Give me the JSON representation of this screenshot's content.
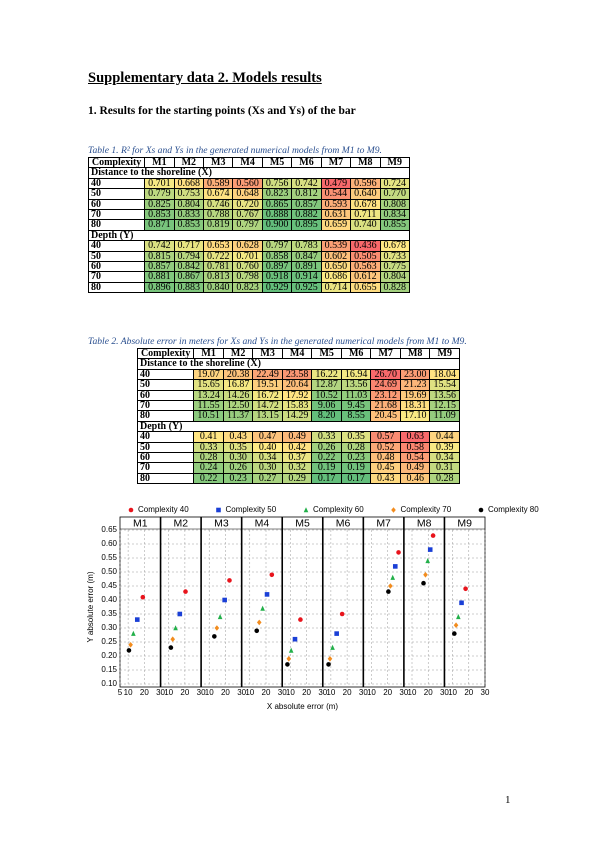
{
  "header": {
    "title": "Supplementary data 2. Models results",
    "section": "1. Results for the starting points (Xs and Ys) of the bar"
  },
  "table1": {
    "caption": "Table 1. R² for Xs and Ys in the generated numerical models from M1 to M9.",
    "header": [
      "Complexity",
      "M1",
      "M2",
      "M3",
      "M4",
      "M5",
      "M6",
      "M7",
      "M8",
      "M9"
    ],
    "sections": [
      {
        "title": "Distance to the shoreline (X)",
        "rows": [
          {
            "label": "40",
            "cells": [
              "0.701",
              "0.668",
              "0.589",
              "0.560",
              "0.756",
              "0.742",
              "0.479",
              "0.596",
              "0.724"
            ]
          },
          {
            "label": "50",
            "cells": [
              "0.779",
              "0.753",
              "0.674",
              "0.648",
              "0.823",
              "0.812",
              "0.544",
              "0.640",
              "0.770"
            ]
          },
          {
            "label": "60",
            "cells": [
              "0.825",
              "0.804",
              "0.746",
              "0.720",
              "0.865",
              "0.857",
              "0.593",
              "0.678",
              "0.808"
            ]
          },
          {
            "label": "70",
            "cells": [
              "0.853",
              "0.833",
              "0.788",
              "0.767",
              "0.888",
              "0.882",
              "0.631",
              "0.711",
              "0.834"
            ]
          },
          {
            "label": "80",
            "cells": [
              "0.871",
              "0.853",
              "0.819",
              "0.797",
              "0.900",
              "0.895",
              "0.659",
              "0.740",
              "0.855"
            ]
          }
        ]
      },
      {
        "title": "Depth (Y)",
        "rows": [
          {
            "label": "40",
            "cells": [
              "0.742",
              "0.717",
              "0.653",
              "0.628",
              "0.797",
              "0.783",
              "0.539",
              "0.436",
              "0.678"
            ]
          },
          {
            "label": "50",
            "cells": [
              "0.815",
              "0.794",
              "0.722",
              "0.701",
              "0.858",
              "0.847",
              "0.602",
              "0.505",
              "0.733"
            ]
          },
          {
            "label": "60",
            "cells": [
              "0.857",
              "0.842",
              "0.781",
              "0.760",
              "0.897",
              "0.891",
              "0.650",
              "0.563",
              "0.775"
            ]
          },
          {
            "label": "70",
            "cells": [
              "0.881",
              "0.867",
              "0.813",
              "0.798",
              "0.918",
              "0.914",
              "0.686",
              "0.612",
              "0.804"
            ]
          },
          {
            "label": "80",
            "cells": [
              "0.896",
              "0.883",
              "0.840",
              "0.823",
              "0.929",
              "0.925",
              "0.714",
              "0.655",
              "0.828"
            ]
          }
        ]
      }
    ]
  },
  "table2": {
    "caption": "Table 2. Absolute error in meters for Xs and Ys in the generated numerical models from M1 to M9.",
    "header": [
      "Complexity",
      "M1",
      "M2",
      "M3",
      "M4",
      "M5",
      "M6",
      "M7",
      "M8",
      "M9"
    ],
    "sections": [
      {
        "title": "Distance to the shoreline (X)",
        "rows": [
          {
            "label": "40",
            "cells": [
              "19.07",
              "20.38",
              "22.49",
              "23.58",
              "16.22",
              "16.94",
              "26.70",
              "23.00",
              "18.04"
            ]
          },
          {
            "label": "50",
            "cells": [
              "15.65",
              "16.87",
              "19.51",
              "20.64",
              "12.87",
              "13.56",
              "24.69",
              "21.23",
              "15.54"
            ]
          },
          {
            "label": "60",
            "cells": [
              "13.24",
              "14.26",
              "16.72",
              "17.92",
              "10.52",
              "11.03",
              "23.12",
              "19.69",
              "13.56"
            ]
          },
          {
            "label": "70",
            "cells": [
              "11.55",
              "12.50",
              "14.72",
              "15.83",
              "9.06",
              "9.45",
              "21.68",
              "18.31",
              "12.15"
            ]
          },
          {
            "label": "80",
            "cells": [
              "10.51",
              "11.37",
              "13.15",
              "14.29",
              "8.20",
              "8.55",
              "20.45",
              "17.10",
              "11.09"
            ]
          }
        ]
      },
      {
        "title": "Depth (Y)",
        "rows": [
          {
            "label": "40",
            "cells": [
              "0.41",
              "0.43",
              "0.47",
              "0.49",
              "0.33",
              "0.35",
              "0.57",
              "0.63",
              "0.44"
            ]
          },
          {
            "label": "50",
            "cells": [
              "0.33",
              "0.35",
              "0.40",
              "0.42",
              "0.26",
              "0.28",
              "0.52",
              "0.58",
              "0.39"
            ]
          },
          {
            "label": "60",
            "cells": [
              "0.28",
              "0.30",
              "0.34",
              "0.37",
              "0.22",
              "0.23",
              "0.48",
              "0.54",
              "0.34"
            ]
          },
          {
            "label": "70",
            "cells": [
              "0.24",
              "0.26",
              "0.30",
              "0.32",
              "0.19",
              "0.19",
              "0.45",
              "0.49",
              "0.31"
            ]
          },
          {
            "label": "80",
            "cells": [
              "0.22",
              "0.23",
              "0.27",
              "0.29",
              "0.17",
              "0.17",
              "0.43",
              "0.46",
              "0.28"
            ]
          }
        ]
      }
    ]
  },
  "chart_data": {
    "type": "scatter",
    "xlabel": "X absolute error (m)",
    "ylabel": "Y absolute error (m)",
    "xlim": [
      5,
      30
    ],
    "ylim": [
      0.1,
      0.65
    ],
    "yticks": [
      {
        "value": 0.1,
        "label": "0.10"
      },
      {
        "value": 0.15,
        "label": "0.15"
      },
      {
        "value": 0.2,
        "label": "0.20"
      },
      {
        "value": 0.25,
        "label": "0.25"
      },
      {
        "value": 0.3,
        "label": "0.30"
      },
      {
        "value": 0.35,
        "label": "0.35"
      },
      {
        "value": 0.4,
        "label": "0.40"
      },
      {
        "value": 0.45,
        "label": "0.45"
      },
      {
        "value": 0.5,
        "label": "0.50"
      },
      {
        "value": 0.55,
        "label": "0.55"
      },
      {
        "value": 0.6,
        "label": "0.60"
      },
      {
        "value": 0.65,
        "label": "0.65"
      }
    ],
    "grid": true,
    "legend": "top",
    "panels": [
      {
        "title": "M1",
        "xticks": [
          5,
          10,
          20,
          30
        ]
      },
      {
        "title": "M2",
        "xticks": [
          10,
          20,
          30
        ]
      },
      {
        "title": "M3",
        "xticks": [
          10,
          20,
          30
        ]
      },
      {
        "title": "M4",
        "xticks": [
          10,
          20,
          30
        ]
      },
      {
        "title": "M5",
        "xticks": [
          10,
          20,
          30
        ]
      },
      {
        "title": "M6",
        "xticks": [
          10,
          20,
          30
        ]
      },
      {
        "title": "M7",
        "xticks": [
          10,
          20,
          30
        ]
      },
      {
        "title": "M8",
        "xticks": [
          10,
          20,
          30
        ]
      },
      {
        "title": "M9",
        "xticks": [
          10,
          20,
          30
        ]
      }
    ],
    "series": [
      {
        "name": "Complexity 40",
        "color": "#e8141c",
        "marker": "circle",
        "x": [
          19.07,
          20.38,
          22.49,
          23.58,
          16.22,
          16.94,
          26.7,
          23.0,
          18.04
        ],
        "y": [
          0.41,
          0.43,
          0.47,
          0.49,
          0.33,
          0.35,
          0.57,
          0.63,
          0.44
        ]
      },
      {
        "name": "Complexity 50",
        "color": "#1a3fd6",
        "marker": "square",
        "x": [
          15.65,
          16.87,
          19.51,
          20.64,
          12.87,
          13.56,
          24.69,
          21.23,
          15.54
        ],
        "y": [
          0.33,
          0.35,
          0.4,
          0.42,
          0.26,
          0.28,
          0.52,
          0.58,
          0.39
        ]
      },
      {
        "name": "Complexity 60",
        "color": "#22b04a",
        "marker": "triangle",
        "x": [
          13.24,
          14.26,
          16.72,
          17.92,
          10.52,
          11.03,
          23.12,
          19.69,
          13.56
        ],
        "y": [
          0.28,
          0.3,
          0.34,
          0.37,
          0.22,
          0.23,
          0.48,
          0.54,
          0.34
        ]
      },
      {
        "name": "Complexity 70",
        "color": "#f28c1e",
        "marker": "diamond",
        "x": [
          11.55,
          12.5,
          14.72,
          15.83,
          9.06,
          9.45,
          21.68,
          18.31,
          12.15
        ],
        "y": [
          0.24,
          0.26,
          0.3,
          0.32,
          0.19,
          0.19,
          0.45,
          0.49,
          0.31
        ]
      },
      {
        "name": "Complexity 80",
        "color": "#000000",
        "marker": "circle",
        "x": [
          10.51,
          11.37,
          13.15,
          14.29,
          8.2,
          8.55,
          20.45,
          17.1,
          11.09
        ],
        "y": [
          0.22,
          0.23,
          0.27,
          0.29,
          0.17,
          0.17,
          0.43,
          0.46,
          0.28
        ]
      }
    ]
  },
  "footer": {
    "page": "1"
  }
}
